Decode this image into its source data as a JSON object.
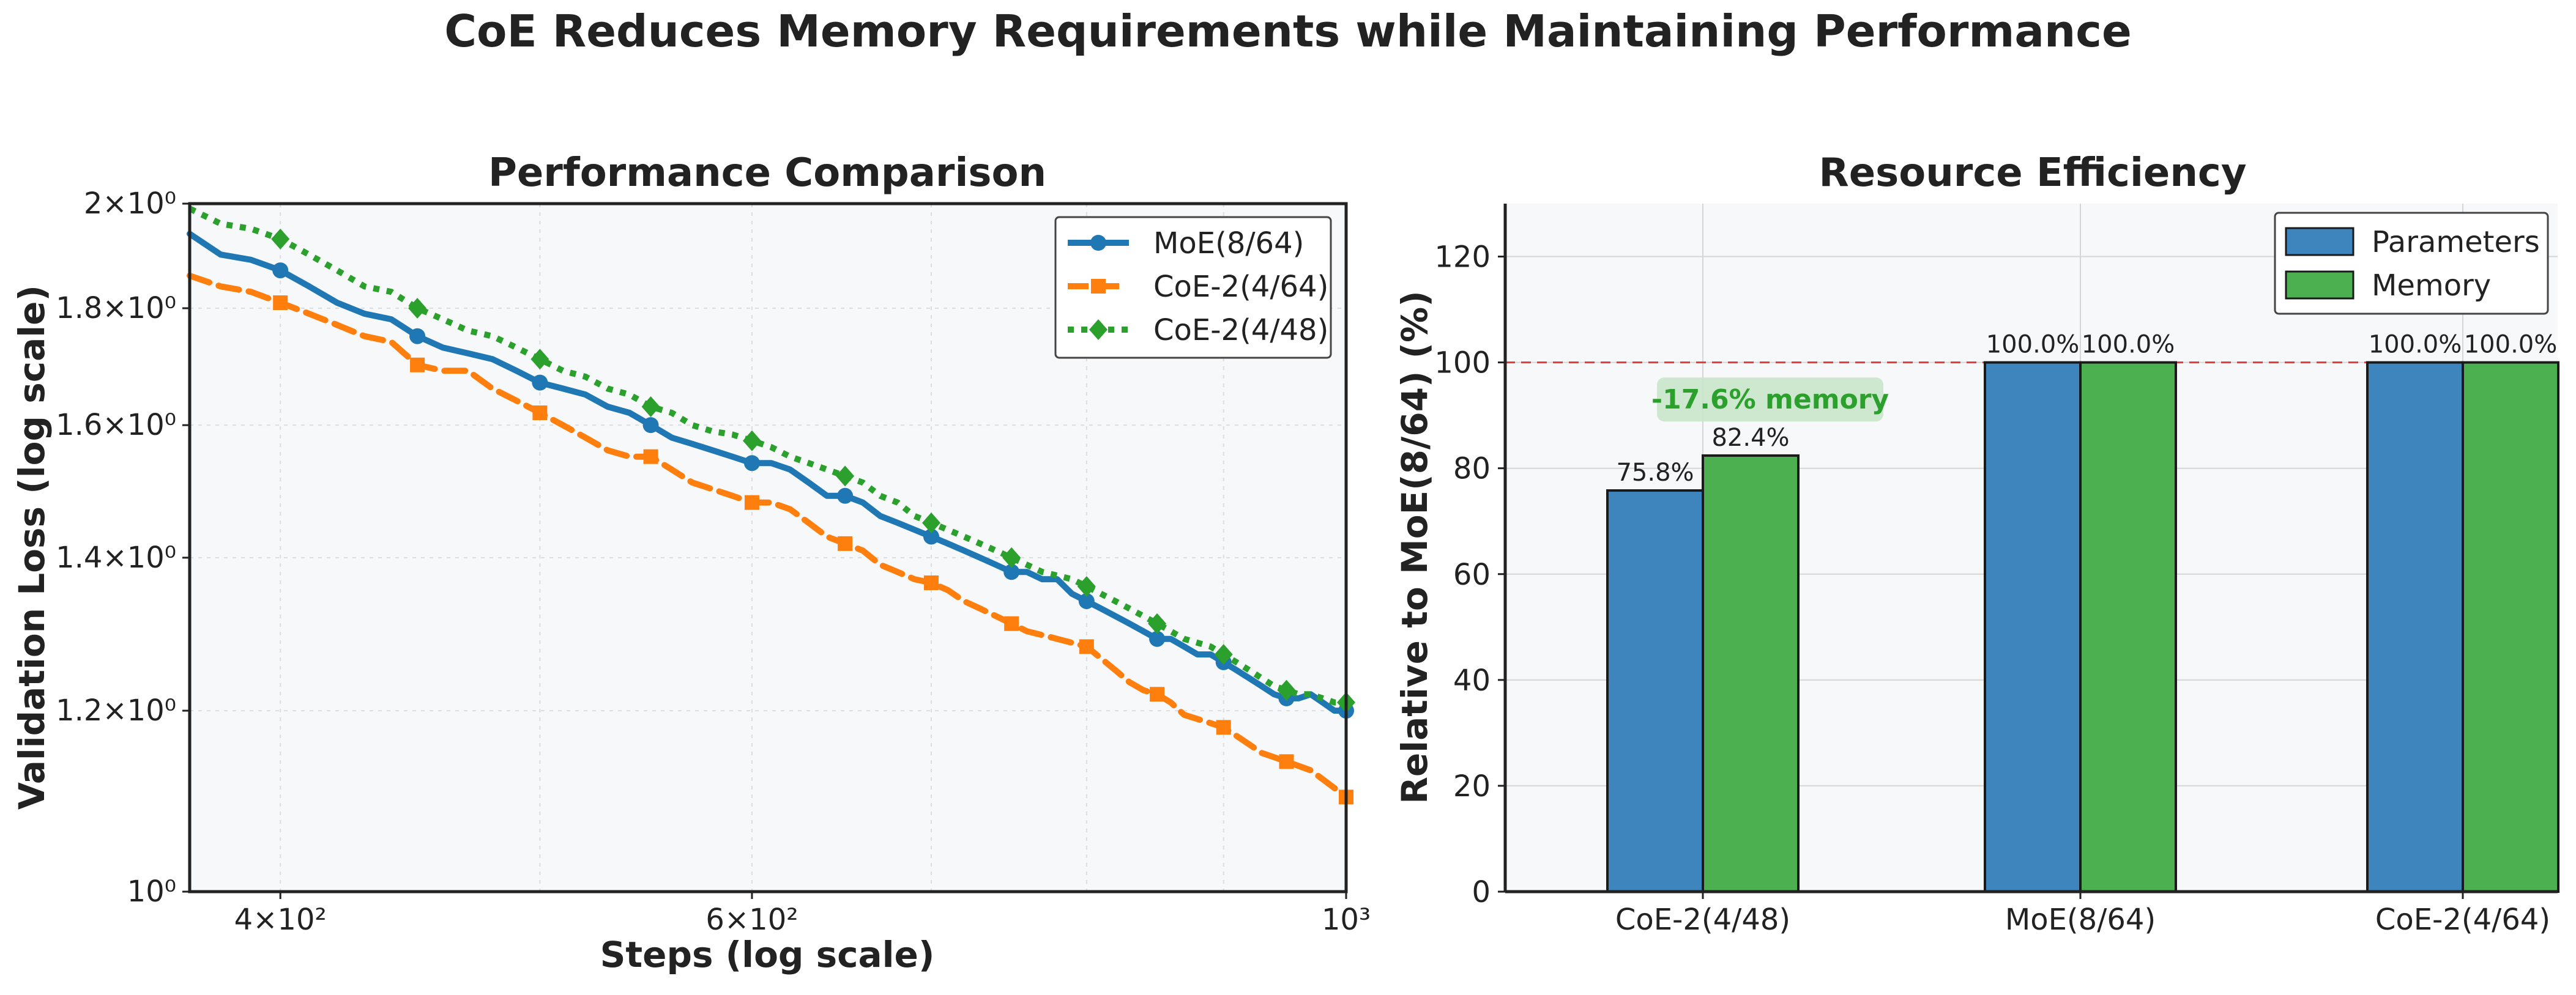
{
  "figure": {
    "title": "CoE Reduces Memory Requirements while Maintaining Performance"
  },
  "colors": {
    "moe": "#1f77b4",
    "coe_4_64": "#ff7f0e",
    "coe_4_48": "#2ca02c",
    "parameters": "#3e85bd",
    "memory": "#4caf50",
    "reference_line": "#e33b3b",
    "annotation_text": "#2ca02c",
    "annotation_bg": "#c8e6c9",
    "plot_bg": "#f7f8fa"
  },
  "chart_data": [
    {
      "type": "line",
      "title": "Performance Comparison",
      "xlabel": "Steps (log scale)",
      "ylabel": "Validation Loss (log scale)",
      "xscale": "log",
      "yscale": "log",
      "xlim": [
        370,
        1000
      ],
      "ylim": [
        1.0,
        2.0
      ],
      "xticks": [
        {
          "value": 400,
          "label": "4×10²"
        },
        {
          "value": 600,
          "label": "6×10²"
        },
        {
          "value": 1000,
          "label": "10³"
        }
      ],
      "yticks": [
        {
          "value": 1.0,
          "label": "10⁰"
        },
        {
          "value": 1.2,
          "label": "1.2×10⁰"
        },
        {
          "value": 1.4,
          "label": "1.4×10⁰"
        },
        {
          "value": 1.6,
          "label": "1.6×10⁰"
        },
        {
          "value": 1.8,
          "label": "1.8×10⁰"
        },
        {
          "value": 2.0,
          "label": "2×10⁰"
        }
      ],
      "grid": true,
      "legend": "top-right",
      "series": [
        {
          "name": "MoE(8/64)",
          "color": "#1f77b4",
          "linestyle": "solid",
          "marker": "circle",
          "x": [
            370,
            380,
            390,
            400,
            410,
            420,
            430,
            440,
            450,
            460,
            470,
            480,
            490,
            500,
            510,
            520,
            530,
            540,
            550,
            560,
            570,
            580,
            590,
            600,
            610,
            620,
            630,
            640,
            650,
            660,
            670,
            680,
            690,
            700,
            710,
            720,
            730,
            740,
            750,
            760,
            770,
            780,
            790,
            800,
            810,
            820,
            830,
            840,
            850,
            860,
            870,
            880,
            890,
            900,
            910,
            920,
            930,
            940,
            950,
            960,
            970,
            980,
            990,
            1000
          ],
          "y": [
            1.94,
            1.9,
            1.89,
            1.87,
            1.84,
            1.81,
            1.79,
            1.78,
            1.75,
            1.73,
            1.72,
            1.71,
            1.69,
            1.67,
            1.66,
            1.65,
            1.63,
            1.62,
            1.6,
            1.58,
            1.57,
            1.56,
            1.55,
            1.54,
            1.54,
            1.53,
            1.51,
            1.49,
            1.49,
            1.48,
            1.46,
            1.45,
            1.44,
            1.43,
            1.42,
            1.41,
            1.4,
            1.39,
            1.38,
            1.38,
            1.37,
            1.37,
            1.35,
            1.34,
            1.33,
            1.32,
            1.31,
            1.3,
            1.29,
            1.29,
            1.28,
            1.27,
            1.27,
            1.26,
            1.25,
            1.24,
            1.23,
            1.22,
            1.215,
            1.215,
            1.22,
            1.21,
            1.2,
            1.2
          ],
          "markers_x": [
            400,
            450,
            500,
            550,
            600,
            650,
            700,
            750,
            800,
            850,
            900,
            950,
            1000
          ]
        },
        {
          "name": "CoE-2(4/64)",
          "color": "#ff7f0e",
          "linestyle": "dashed",
          "marker": "square",
          "x": [
            370,
            380,
            390,
            400,
            410,
            420,
            430,
            440,
            450,
            460,
            470,
            480,
            490,
            500,
            510,
            520,
            530,
            540,
            550,
            560,
            570,
            580,
            590,
            600,
            610,
            620,
            630,
            640,
            650,
            660,
            670,
            680,
            690,
            700,
            710,
            720,
            730,
            740,
            750,
            760,
            770,
            780,
            790,
            800,
            810,
            820,
            830,
            840,
            850,
            860,
            870,
            880,
            890,
            900,
            910,
            920,
            930,
            940,
            950,
            960,
            970,
            980,
            990,
            1000
          ],
          "y": [
            1.86,
            1.84,
            1.83,
            1.81,
            1.79,
            1.77,
            1.75,
            1.74,
            1.7,
            1.69,
            1.69,
            1.66,
            1.64,
            1.62,
            1.6,
            1.58,
            1.56,
            1.55,
            1.55,
            1.53,
            1.51,
            1.5,
            1.49,
            1.48,
            1.48,
            1.47,
            1.45,
            1.43,
            1.42,
            1.41,
            1.39,
            1.38,
            1.37,
            1.365,
            1.355,
            1.34,
            1.33,
            1.32,
            1.31,
            1.3,
            1.295,
            1.29,
            1.285,
            1.28,
            1.265,
            1.25,
            1.235,
            1.225,
            1.22,
            1.21,
            1.195,
            1.19,
            1.185,
            1.18,
            1.17,
            1.16,
            1.15,
            1.145,
            1.14,
            1.135,
            1.13,
            1.12,
            1.11,
            1.1
          ],
          "markers_x": [
            400,
            450,
            500,
            550,
            600,
            650,
            700,
            750,
            800,
            850,
            900,
            950,
            1000
          ]
        },
        {
          "name": "CoE-2(4/48)",
          "color": "#2ca02c",
          "linestyle": "dotted",
          "marker": "diamond",
          "x": [
            370,
            380,
            390,
            400,
            410,
            420,
            430,
            440,
            450,
            460,
            470,
            480,
            490,
            500,
            510,
            520,
            530,
            540,
            550,
            560,
            570,
            580,
            590,
            600,
            610,
            620,
            630,
            640,
            650,
            660,
            670,
            680,
            690,
            700,
            710,
            720,
            730,
            740,
            750,
            760,
            770,
            780,
            790,
            800,
            810,
            820,
            830,
            840,
            850,
            860,
            870,
            880,
            890,
            900,
            910,
            920,
            930,
            940,
            950,
            960,
            970,
            980,
            990,
            1000
          ],
          "y": [
            1.99,
            1.96,
            1.95,
            1.93,
            1.9,
            1.87,
            1.84,
            1.83,
            1.8,
            1.78,
            1.76,
            1.75,
            1.73,
            1.71,
            1.69,
            1.68,
            1.66,
            1.65,
            1.63,
            1.62,
            1.6,
            1.59,
            1.585,
            1.575,
            1.565,
            1.55,
            1.54,
            1.53,
            1.52,
            1.51,
            1.49,
            1.48,
            1.46,
            1.45,
            1.44,
            1.43,
            1.42,
            1.41,
            1.4,
            1.39,
            1.38,
            1.375,
            1.37,
            1.36,
            1.35,
            1.34,
            1.33,
            1.32,
            1.31,
            1.3,
            1.29,
            1.285,
            1.28,
            1.27,
            1.26,
            1.25,
            1.24,
            1.23,
            1.225,
            1.22,
            1.22,
            1.215,
            1.21,
            1.21
          ],
          "markers_x": [
            400,
            450,
            500,
            550,
            600,
            650,
            700,
            750,
            800,
            850,
            900,
            950,
            1000
          ]
        }
      ]
    },
    {
      "type": "bar",
      "title": "Resource Efficiency",
      "xlabel": "",
      "ylabel": "Relative to MoE(8/64) (%)",
      "categories": [
        "CoE-2(4/48)",
        "MoE(8/64)",
        "CoE-2(4/64)"
      ],
      "ylim": [
        0,
        130
      ],
      "yticks": [
        0,
        20,
        40,
        60,
        80,
        100,
        120
      ],
      "grid": true,
      "legend": "top-right",
      "reference_line": 100,
      "series": [
        {
          "name": "Parameters",
          "color": "#3e85bd",
          "values": [
            75.8,
            100.0,
            100.0
          ],
          "labels": [
            "75.8%",
            "100.0%",
            "100.0%"
          ]
        },
        {
          "name": "Memory",
          "color": "#4caf50",
          "values": [
            82.4,
            100.0,
            100.0
          ],
          "labels": [
            "82.4%",
            "100.0%",
            "100.0%"
          ]
        }
      ],
      "annotation": {
        "text": "-17.6% memory",
        "category": "CoE-2(4/48)",
        "value": 93
      }
    }
  ]
}
